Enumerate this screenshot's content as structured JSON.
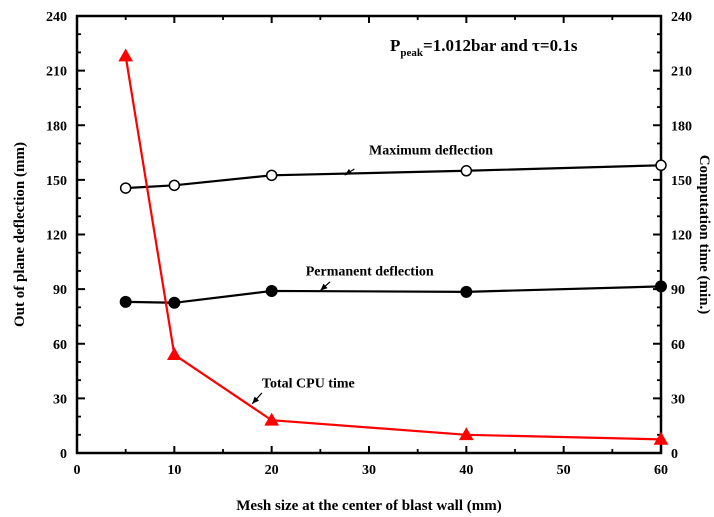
{
  "chart_data": {
    "type": "line",
    "xlabel": "Mesh size at the center of blast wall (mm)",
    "ylabel": "Out of plane deflection (mm)",
    "y2label": "Computation time (min.)",
    "xlim": [
      0,
      60
    ],
    "ylim": [
      0,
      240
    ],
    "y2lim": [
      0,
      240
    ],
    "x_ticks": [
      "0",
      "10",
      "20",
      "30",
      "40",
      "50",
      "60"
    ],
    "y_ticks": [
      "0",
      "30",
      "60",
      "90",
      "120",
      "150",
      "180",
      "210",
      "240"
    ],
    "y2_ticks": [
      "0",
      "30",
      "60",
      "90",
      "120",
      "150",
      "180",
      "210",
      "240"
    ],
    "grid": false,
    "condition": {
      "main": "P",
      "subscript": "peak",
      "rest": "=1.012bar and τ=0.1s"
    },
    "series": [
      {
        "name": "Maximum deflection",
        "axis": "left",
        "marker": "open-circle",
        "color": "#000000",
        "x": [
          5,
          10,
          20,
          40,
          60
        ],
        "y": [
          145.5,
          147,
          152.5,
          155,
          158
        ]
      },
      {
        "name": "Permanent deflection",
        "axis": "left",
        "marker": "filled-circle",
        "color": "#000000",
        "x": [
          5,
          10,
          20,
          40,
          60
        ],
        "y": [
          83,
          82.5,
          89,
          88.5,
          91.5
        ]
      },
      {
        "name": "Total CPU time",
        "axis": "right",
        "marker": "filled-triangle",
        "color": "#ff0000",
        "x": [
          5,
          10,
          20,
          40,
          60
        ],
        "y": [
          218,
          54,
          18,
          10,
          7.5
        ]
      }
    ]
  }
}
